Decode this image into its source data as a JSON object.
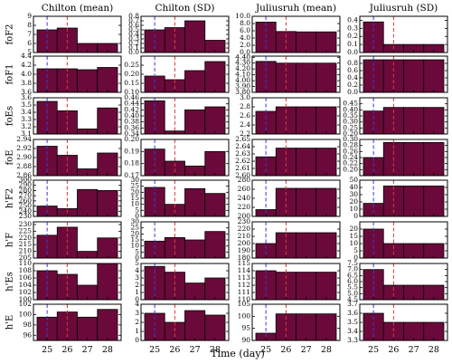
{
  "figure": {
    "xlabel": "Time (day)",
    "x_ticks": [
      "25",
      "26",
      "27",
      "28"
    ],
    "columns": [
      "Chilton (mean)",
      "Chilton (SD)",
      "Juliusruh (mean)",
      "Juliusruh (SD)"
    ],
    "rows": [
      "foF2",
      "foF1",
      "foEs",
      "foE",
      "h'F2",
      "h'F",
      "h'Es",
      "h'E"
    ]
  },
  "colors": {
    "bar_fill": "#6b0a3a",
    "bar_edge": "#000000",
    "blue_line": "#3a3ad6",
    "red_line": "#d63a3a"
  },
  "chart_data": {
    "type": "bar",
    "categories": [
      "25",
      "26",
      "27",
      "28"
    ],
    "vlines": [
      {
        "x": "25",
        "color": "blue",
        "style": "dashed"
      },
      {
        "x": "26",
        "color": "red",
        "style": "dashed"
      }
    ],
    "panels": [
      {
        "row": "foF2",
        "col": "Chilton (mean)",
        "ylim": [
          5,
          9
        ],
        "yticks": [
          "5",
          "6",
          "7",
          "8",
          "9"
        ],
        "values": [
          7.5,
          7.7,
          6.0,
          6.0
        ]
      },
      {
        "row": "foF2",
        "col": "Chilton (SD)",
        "ylim": [
          0,
          0.8
        ],
        "yticks": [
          "0.0",
          "0.1",
          "0.2",
          "0.3",
          "0.4",
          "0.5",
          "0.6",
          "0.7",
          "0.8"
        ],
        "values": [
          0.5,
          0.55,
          0.7,
          0.27
        ]
      },
      {
        "row": "foF2",
        "col": "Juliusruh (mean)",
        "ylim": [
          0,
          10
        ],
        "yticks": [
          "0.0",
          "2.0",
          "4.0",
          "6.0",
          "8.0",
          "10.0"
        ],
        "values": [
          8.4,
          5.8,
          5.7,
          5.7
        ]
      },
      {
        "row": "foF2",
        "col": "Juliusruh (SD)",
        "ylim": [
          0,
          0.45
        ],
        "yticks": [
          "0.0",
          "0.1",
          "0.2",
          "0.3",
          "0.4"
        ],
        "values": [
          0.38,
          0.1,
          0.1,
          0.1
        ]
      },
      {
        "row": "foF1",
        "col": "Chilton (mean)",
        "ylim": [
          3.6,
          4.4
        ],
        "yticks": [
          "3.6",
          "3.8",
          "4.0",
          "4.2",
          "4.4"
        ],
        "values": [
          4.12,
          4.12,
          4.1,
          4.15
        ]
      },
      {
        "row": "foF1",
        "col": "Chilton (SD)",
        "ylim": [
          0.1,
          0.3
        ],
        "yticks": [
          "0.10",
          "0.15",
          "0.20",
          "0.25"
        ],
        "values": [
          0.19,
          0.17,
          0.22,
          0.27
        ]
      },
      {
        "row": "foF1",
        "col": "Juliusruh (mean)",
        "ylim": [
          3.8,
          4.42
        ],
        "yticks": [
          "3.80",
          "3.90",
          "4.00",
          "4.10",
          "4.20",
          "4.30",
          "4.40"
        ],
        "values": [
          4.33,
          4.3,
          4.3,
          4.3
        ]
      },
      {
        "row": "foF1",
        "col": "Juliusruh (SD)",
        "ylim": [
          0,
          1.0
        ],
        "yticks": [
          "0.0",
          "0.2",
          "0.4",
          "0.6",
          "0.8"
        ],
        "values": [
          0.9,
          0.9,
          0.9,
          0.9
        ]
      },
      {
        "row": "foEs",
        "col": "Chilton (mean)",
        "ylim": [
          3.1,
          3.6
        ],
        "yticks": [
          "3.1",
          "3.2",
          "3.3",
          "3.4",
          "3.5",
          "3.6"
        ],
        "values": [
          3.55,
          3.42,
          3.17,
          3.46
        ]
      },
      {
        "row": "foEs",
        "col": "Chilton (SD)",
        "ylim": [
          0.34,
          0.46
        ],
        "yticks": [
          "0.34",
          "0.36",
          "0.38",
          "0.40",
          "0.42",
          "0.44",
          "0.46"
        ],
        "values": [
          0.45,
          0.35,
          0.42,
          0.43
        ]
      },
      {
        "row": "foEs",
        "col": "Juliusruh (mean)",
        "ylim": [
          2.2,
          3.0
        ],
        "yticks": [
          "2.2",
          "2.4",
          "2.6",
          "2.8",
          "3.0"
        ],
        "values": [
          2.7,
          2.8,
          2.8,
          2.8
        ]
      },
      {
        "row": "foEs",
        "col": "Juliusruh (SD)",
        "ylim": [
          0.2,
          0.5
        ],
        "yticks": [
          "0.20",
          "0.25",
          "0.30",
          "0.35",
          "0.40",
          "0.45"
        ],
        "values": [
          0.39,
          0.42,
          0.42,
          0.42
        ]
      },
      {
        "row": "foE",
        "col": "Chilton (mean)",
        "ylim": [
          2.86,
          2.94
        ],
        "yticks": [
          "2.86",
          "2.88",
          "2.90",
          "2.92",
          "2.94"
        ],
        "values": [
          2.925,
          2.905,
          2.875,
          2.91
        ]
      },
      {
        "row": "foE",
        "col": "Chilton (SD)",
        "ylim": [
          0.17,
          0.2
        ],
        "yticks": [
          "0.17",
          "0.18",
          "0.19",
          "0.20"
        ],
        "values": [
          0.192,
          0.182,
          0.178,
          0.19
        ]
      },
      {
        "row": "foE",
        "col": "Juliusruh (mean)",
        "ylim": [
          2.6,
          2.65
        ],
        "yticks": [
          "2.60",
          "2.61",
          "2.62",
          "2.63",
          "2.64",
          "2.65"
        ],
        "values": [
          2.626,
          2.638,
          2.638,
          2.638
        ]
      },
      {
        "row": "foE",
        "col": "Juliusruh (SD)",
        "ylim": [
          0.18,
          0.3
        ],
        "yticks": [
          "0.20",
          "0.22",
          "0.24",
          "0.26",
          "0.28",
          "0.30"
        ],
        "values": [
          0.24,
          0.29,
          0.29,
          0.29
        ]
      },
      {
        "row": "h'F2",
        "col": "Chilton (mean)",
        "ylim": [
          230,
          300
        ],
        "yticks": [
          "230",
          "240",
          "250",
          "260",
          "270",
          "280",
          "290",
          "300"
        ],
        "values": [
          250,
          245,
          282,
          280
        ]
      },
      {
        "row": "h'F2",
        "col": "Chilton (SD)",
        "ylim": [
          0,
          30
        ],
        "yticks": [
          "0",
          "5",
          "10",
          "15",
          "20",
          "25",
          "30"
        ],
        "values": [
          24,
          10,
          23,
          19
        ]
      },
      {
        "row": "h'F2",
        "col": "Juliusruh (mean)",
        "ylim": [
          200,
          280
        ],
        "yticks": [
          "200",
          "220",
          "240",
          "260",
          "280"
        ],
        "values": [
          215,
          262,
          262,
          262
        ]
      },
      {
        "row": "h'F2",
        "col": "Juliusruh (SD)",
        "ylim": [
          0,
          50
        ],
        "yticks": [
          "0",
          "10",
          "20",
          "30",
          "40",
          "50"
        ],
        "values": [
          18,
          42,
          42,
          42
        ]
      },
      {
        "row": "h'F",
        "col": "Chilton (mean)",
        "ylim": [
          205,
          232
        ],
        "yticks": [
          "205",
          "210",
          "215",
          "220",
          "225",
          "230"
        ],
        "values": [
          222,
          228,
          210,
          220
        ]
      },
      {
        "row": "h'F",
        "col": "Chilton (SD)",
        "ylim": [
          0,
          30
        ],
        "yticks": [
          "0",
          "5",
          "10",
          "15",
          "20",
          "25",
          "30"
        ],
        "values": [
          14,
          17,
          15,
          22
        ]
      },
      {
        "row": "h'F",
        "col": "Juliusruh (mean)",
        "ylim": [
          180,
          230
        ],
        "yticks": [
          "180",
          "190",
          "200",
          "210",
          "220",
          "230"
        ],
        "values": [
          200,
          215,
          215,
          215
        ]
      },
      {
        "row": "h'F",
        "col": "Juliusruh (SD)",
        "ylim": [
          0,
          25
        ],
        "yticks": [
          "0",
          "5",
          "10",
          "15",
          "20"
        ],
        "values": [
          20,
          10,
          10,
          10
        ]
      },
      {
        "row": "h'Es",
        "col": "Chilton (mean)",
        "ylim": [
          100,
          110
        ],
        "yticks": [
          "100",
          "102",
          "104",
          "106",
          "108",
          "110"
        ],
        "values": [
          108,
          107,
          104,
          110
        ]
      },
      {
        "row": "h'Es",
        "col": "Chilton (SD)",
        "ylim": [
          0,
          5
        ],
        "yticks": [
          "0",
          "1",
          "2",
          "3",
          "4",
          "5"
        ],
        "values": [
          4.6,
          3.8,
          2.3,
          3.0
        ]
      },
      {
        "row": "h'Es",
        "col": "Juliusruh (mean)",
        "ylim": [
          110,
          115
        ],
        "yticks": [
          "110",
          "111",
          "112",
          "113",
          "114",
          "115"
        ],
        "values": [
          114,
          113.8,
          113.8,
          113.8
        ]
      },
      {
        "row": "h'Es",
        "col": "Juliusruh (SD)",
        "ylim": [
          4.5,
          7.5
        ],
        "yticks": [
          "4.5",
          "5.0",
          "5.5",
          "6.0",
          "6.5",
          "7.0",
          "7.5"
        ],
        "values": [
          7.0,
          5.7,
          5.7,
          5.7
        ]
      },
      {
        "row": "h'E",
        "col": "Chilton (mean)",
        "ylim": [
          95,
          102
        ],
        "yticks": [
          "96",
          "98",
          "100",
          "102"
        ],
        "values": [
          99.5,
          100.5,
          99.5,
          101
        ]
      },
      {
        "row": "h'E",
        "col": "Chilton (SD)",
        "ylim": [
          0,
          4
        ],
        "yticks": [
          "0",
          "1",
          "2",
          "3",
          "4"
        ],
        "values": [
          3,
          2,
          3.3,
          2.8
        ]
      },
      {
        "row": "h'E",
        "col": "Juliusruh (mean)",
        "ylim": [
          90,
          105
        ],
        "yticks": [
          "90",
          "95",
          "100",
          "105"
        ],
        "values": [
          93,
          101,
          101,
          101
        ]
      },
      {
        "row": "h'E",
        "col": "Juliusruh (SD)",
        "ylim": [
          3.3,
          3.7
        ],
        "yticks": [
          "3.3",
          "3.4",
          "3.5",
          "3.6",
          "3.7"
        ],
        "values": [
          3.6,
          3.5,
          3.5,
          3.5
        ]
      }
    ]
  }
}
